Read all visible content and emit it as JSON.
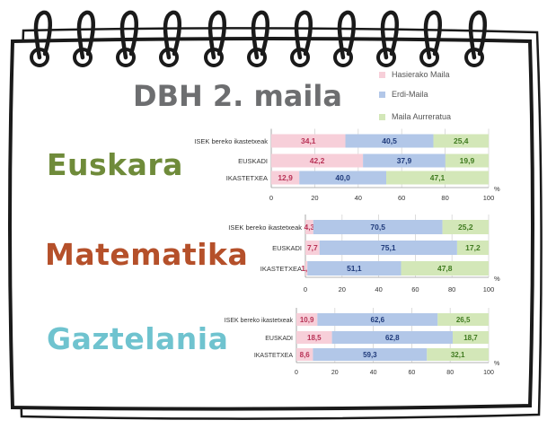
{
  "title": "DBH 2. maila",
  "colors": {
    "low": "#f7cfd9",
    "mid": "#b2c7e8",
    "high": "#d3e7b8",
    "low_text": "#b83256",
    "mid_text": "#1f3a7a",
    "high_text": "#3f7a1f",
    "euskara": "#6f8b3a",
    "matematika": "#b5502a",
    "gaztelania": "#6fc3cf"
  },
  "legend": [
    "Hasierako Maila",
    "Erdi-Maila",
    "Maila Aurreratua"
  ],
  "subjects": [
    {
      "label": "Euskara",
      "color_key": "euskara"
    },
    {
      "label": "Matematika",
      "color_key": "matematika"
    },
    {
      "label": "Gaztelania",
      "color_key": "gaztelania"
    }
  ],
  "chart_data": [
    {
      "type": "bar",
      "orientation": "horizontal",
      "stacked": true,
      "categories": [
        "ISEK bereko ikastetxeak",
        "EUSKADI",
        "IKASTETXEA"
      ],
      "series": [
        {
          "name": "Hasierako Maila",
          "values": [
            34.1,
            42.2,
            12.9
          ]
        },
        {
          "name": "Erdi-Maila",
          "values": [
            40.5,
            37.9,
            40.0
          ]
        },
        {
          "name": "Maila Aurreratua",
          "values": [
            25.4,
            19.9,
            47.1
          ]
        }
      ],
      "value_labels": [
        [
          "34,1",
          "42,2",
          "12,9"
        ],
        [
          "40,5",
          "37,9",
          "40,0"
        ],
        [
          "25,4",
          "19,9",
          "47,1"
        ]
      ],
      "xlim": [
        0,
        100
      ],
      "xticks": [
        0,
        20,
        40,
        60,
        80,
        100
      ],
      "xunit": "%",
      "grid": true
    },
    {
      "type": "bar",
      "orientation": "horizontal",
      "stacked": true,
      "categories": [
        "ISEK bereko ikastetxeak",
        "EUSKADI",
        "IKASTETXEA"
      ],
      "series": [
        {
          "name": "Hasierako Maila",
          "values": [
            4.3,
            7.7,
            1.1
          ]
        },
        {
          "name": "Erdi-Maila",
          "values": [
            70.5,
            75.1,
            51.1
          ]
        },
        {
          "name": "Maila Aurreratua",
          "values": [
            25.2,
            17.2,
            47.8
          ]
        }
      ],
      "value_labels": [
        [
          "4,3",
          "7,7",
          "1,1"
        ],
        [
          "70,5",
          "75,1",
          "51,1"
        ],
        [
          "25,2",
          "17,2",
          "47,8"
        ]
      ],
      "xlim": [
        0,
        100
      ],
      "xticks": [
        0,
        20,
        40,
        60,
        80,
        100
      ],
      "xunit": "%",
      "grid": true
    },
    {
      "type": "bar",
      "orientation": "horizontal",
      "stacked": true,
      "categories": [
        "ISEK bereko ikastetxeak",
        "EUSKADI",
        "IKASTETXEA"
      ],
      "series": [
        {
          "name": "Hasierako Maila",
          "values": [
            10.9,
            18.5,
            8.6
          ]
        },
        {
          "name": "Erdi-Maila",
          "values": [
            62.6,
            62.8,
            59.3
          ]
        },
        {
          "name": "Maila Aurreratua",
          "values": [
            26.5,
            18.7,
            32.1
          ]
        }
      ],
      "value_labels": [
        [
          "10,9",
          "18,5",
          "8,6"
        ],
        [
          "62,6",
          "62,8",
          "59,3"
        ],
        [
          "26,5",
          "18,7",
          "32,1"
        ]
      ],
      "xlim": [
        0,
        100
      ],
      "xticks": [
        0,
        20,
        40,
        60,
        80,
        100
      ],
      "xunit": "%",
      "grid": true
    }
  ]
}
